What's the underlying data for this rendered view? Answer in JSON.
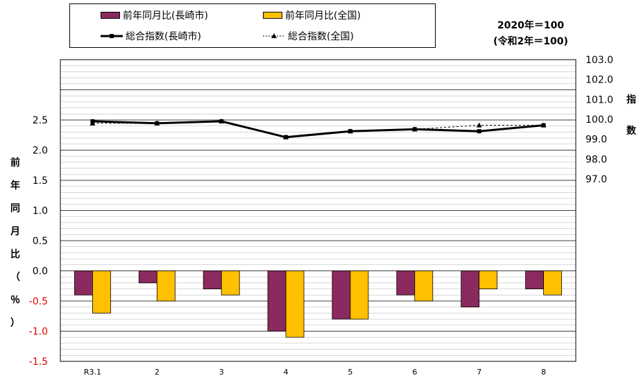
{
  "legend": {
    "items": [
      {
        "label": "前年同月比(長崎市)",
        "color": "#8b2a5e",
        "kind": "bar"
      },
      {
        "label": "前年同月比(全国)",
        "color": "#ffc000",
        "kind": "bar"
      },
      {
        "label": "総合指数(長崎市)",
        "color": "#000000",
        "kind": "line-bold"
      },
      {
        "label": "総合指数(全国)",
        "color": "#000000",
        "kind": "line-dashed"
      }
    ]
  },
  "base_note": {
    "line1": "2020年＝100",
    "line2": "(令和2年＝100)"
  },
  "y_left_label": [
    "前",
    "年",
    "同",
    "月",
    "比",
    "（",
    "％",
    "）"
  ],
  "y_right_label": [
    "指",
    "数"
  ],
  "chart_data": {
    "type": "bar",
    "categories": [
      "R3.1",
      "2",
      "3",
      "4",
      "5",
      "6",
      "7",
      "8"
    ],
    "series": [
      {
        "name": "前年同月比(長崎市)",
        "axis": "left",
        "type": "bar",
        "color": "#8b2a5e",
        "values": [
          -0.4,
          -0.2,
          -0.3,
          -1.0,
          -0.8,
          -0.4,
          -0.6,
          -0.3
        ]
      },
      {
        "name": "前年同月比(全国)",
        "axis": "left",
        "type": "bar",
        "color": "#ffc000",
        "values": [
          -0.7,
          -0.5,
          -0.4,
          -1.1,
          -0.8,
          -0.5,
          -0.3,
          -0.4
        ]
      },
      {
        "name": "総合指数(長崎市)",
        "axis": "right",
        "type": "line",
        "color": "#000000",
        "values": [
          99.9,
          99.8,
          99.9,
          99.1,
          99.4,
          99.5,
          99.4,
          99.7
        ]
      },
      {
        "name": "総合指数(全国)",
        "axis": "right",
        "type": "line",
        "color": "#000000",
        "values": [
          99.8,
          99.8,
          99.9,
          99.1,
          99.4,
          99.5,
          99.7,
          99.7
        ]
      }
    ],
    "y_left": {
      "ticks": [
        "2.5",
        "2.0",
        "1.5",
        "1.0",
        "0.5",
        "0.0",
        "-0.5",
        "-1.0",
        "-1.5"
      ],
      "ylim": [
        -1.5,
        3.5
      ]
    },
    "y_right": {
      "ticks": [
        "103.0",
        "102.0",
        "101.0",
        "100.0",
        "99.0",
        "98.0",
        "97.0"
      ],
      "ylim": [
        97.0,
        103.0
      ]
    },
    "grid": true
  }
}
